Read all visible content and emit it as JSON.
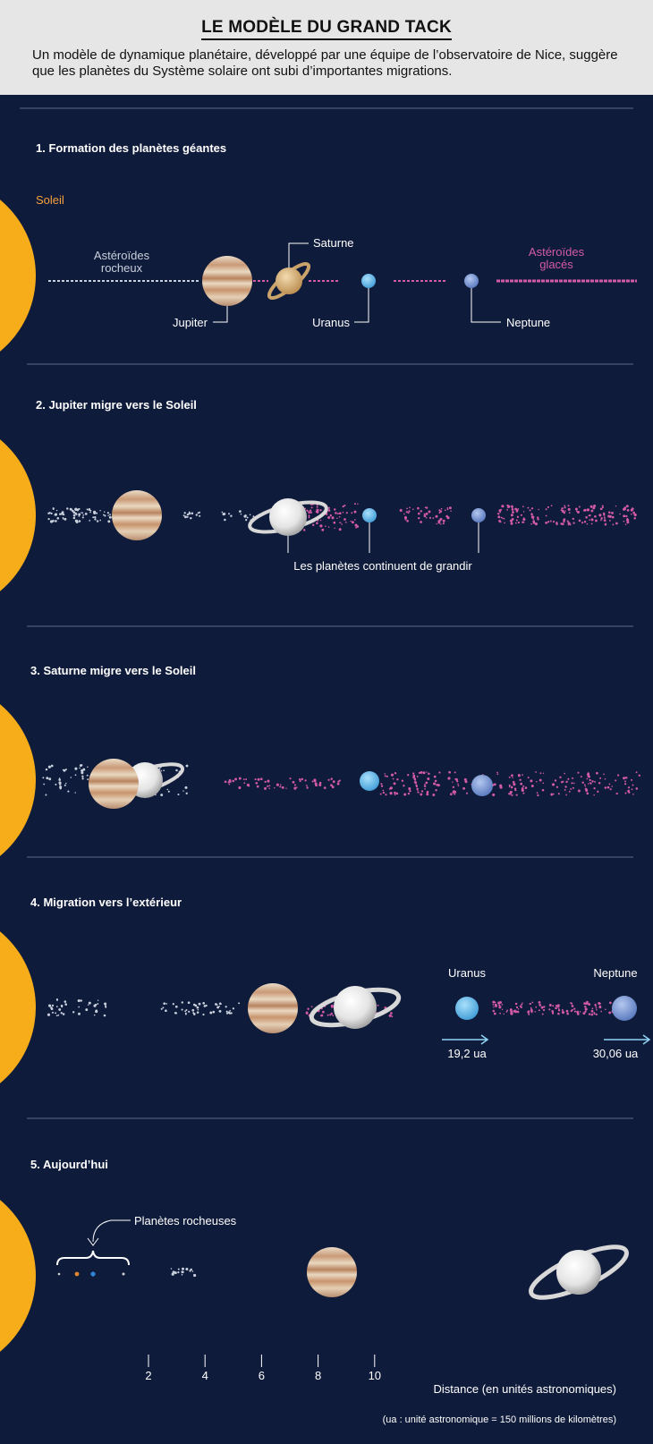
{
  "header": {
    "title": "LE MODÈLE DU GRAND TACK",
    "intro": "Un modèle de dynamique planétaire, développé par une équipe de l’observatoire de Nice, suggère que les planètes du Système solaire ont subi d’importantes migrations."
  },
  "colors": {
    "sun": "#f7ad1a",
    "rocky": "#c9d0dd",
    "icy": "#d35aa8",
    "bg": "#0f1b3a",
    "uranus": "#5db6ea",
    "neptune": "#6f91cf"
  },
  "sections": [
    {
      "title": "1. Formation des planètes géantes",
      "sun_label": "Soleil",
      "rocky_label": "Astéroïdes rocheux",
      "icy_label": "Astéroïdes glacés",
      "jupiter": "Jupiter",
      "saturne": "Saturne",
      "uranus": "Uranus",
      "neptune": "Neptune"
    },
    {
      "title": "2. Jupiter migre vers le Soleil",
      "note": "Les planètes continuent de grandir"
    },
    {
      "title": "3. Saturne migre vers le Soleil"
    },
    {
      "title": "4. Migration vers l’extérieur",
      "uranus": "Uranus",
      "neptune": "Neptune",
      "uranus_dist": "19,2 ua",
      "neptune_dist": "30,06 ua"
    },
    {
      "title": "5. Aujourd’hui",
      "rocky_planets": "Planètes rocheuses"
    }
  ],
  "axis": {
    "ticks": [
      "2",
      "4",
      "6",
      "8",
      "10"
    ],
    "label": "Distance (en unités astronomiques)",
    "footnote": "(ua : unité astronomique = 150 millions de kilomètres)"
  }
}
